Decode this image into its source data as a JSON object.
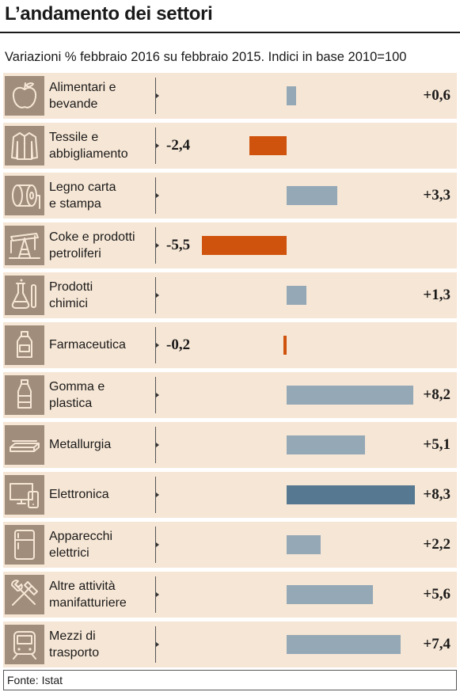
{
  "title": "L’andamento dei settori",
  "subtitle": "Variazioni % febbraio 2016 su febbraio 2015. Indici in base 2010=100",
  "source": "Fonte: Istat",
  "colors": {
    "positive": "#95a8b6",
    "negative": "#cf530d",
    "highlight": "#567890",
    "row_bg": "#f6e6d5",
    "icon_bg": "#a08d7b"
  },
  "chart_data": {
    "type": "bar",
    "orientation": "horizontal",
    "title": "L’andamento dei settori",
    "subtitle": "Variazioni % febbraio 2016 su febbraio 2015. Indici in base 2010=100",
    "categories": [
      "Alimentari e bevande",
      "Tessile e abbigliamento",
      "Legno carta e stampa",
      "Coke e prodotti petroliferi",
      "Prodotti chimici",
      "Farmaceutica",
      "Gomma e plastica",
      "Metallurgia",
      "Elettronica",
      "Apparecchi elettrici",
      "Altre attività manifatturiere",
      "Mezzi di trasporto"
    ],
    "values": [
      0.6,
      -2.4,
      3.3,
      -5.5,
      1.3,
      -0.2,
      8.2,
      5.1,
      8.3,
      2.2,
      5.6,
      7.4
    ],
    "xlim": [
      -5.5,
      8.3
    ],
    "highlight": "Elettronica"
  },
  "rows": [
    {
      "label_l1": "Alimentari e",
      "label_l2": "bevande",
      "value_text": "+0,6",
      "icon": "apple-icon"
    },
    {
      "label_l1": "Tessile e",
      "label_l2": "abbigliamento",
      "value_text": "-2,4",
      "icon": "shirt-icon"
    },
    {
      "label_l1": "Legno carta",
      "label_l2": "e stampa",
      "value_text": "+3,3",
      "icon": "paper-roll-icon"
    },
    {
      "label_l1": "Coke e prodotti",
      "label_l2": "petroliferi",
      "value_text": "-5,5",
      "icon": "oil-pump-icon"
    },
    {
      "label_l1": "Prodotti",
      "label_l2": "chimici",
      "value_text": "+1,3",
      "icon": "flask-icon"
    },
    {
      "label_l1": "Farmaceutica",
      "label_l2": "",
      "value_text": "-0,2",
      "icon": "medicine-bottle-icon"
    },
    {
      "label_l1": "Gomma e",
      "label_l2": "plastica",
      "value_text": "+8,2",
      "icon": "plastic-bottle-icon"
    },
    {
      "label_l1": "Metallurgia",
      "label_l2": "",
      "value_text": "+5,1",
      "icon": "metal-bars-icon"
    },
    {
      "label_l1": "Elettronica",
      "label_l2": "",
      "value_text": "+8,3",
      "icon": "electronics-icon"
    },
    {
      "label_l1": "Apparecchi",
      "label_l2": "elettrici",
      "value_text": "+2,2",
      "icon": "fridge-icon"
    },
    {
      "label_l1": "Altre attività",
      "label_l2": "manifatturiere",
      "value_text": "+5,6",
      "icon": "tools-icon"
    },
    {
      "label_l1": "Mezzi di",
      "label_l2": "trasporto",
      "value_text": "+7,4",
      "icon": "train-icon"
    }
  ]
}
